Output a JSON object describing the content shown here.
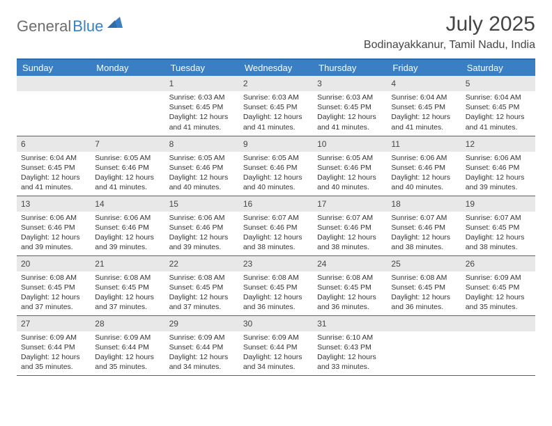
{
  "logo": {
    "text1": "General",
    "text2": "Blue"
  },
  "title": "July 2025",
  "location": "Bodinayakkanur, Tamil Nadu, India",
  "colors": {
    "header_bg": "#3a7fc4",
    "header_text": "#ffffff",
    "border": "#2e6ca8",
    "daynum_bg": "#e8e8e8",
    "body_text": "#333333",
    "title_text": "#454545",
    "logo_gray": "#6d6d6d",
    "logo_blue": "#3a7fc4"
  },
  "weekdays": [
    "Sunday",
    "Monday",
    "Tuesday",
    "Wednesday",
    "Thursday",
    "Friday",
    "Saturday"
  ],
  "weeks": [
    [
      null,
      null,
      {
        "n": "1",
        "sr": "6:03 AM",
        "ss": "6:45 PM",
        "dl": "12 hours and 41 minutes."
      },
      {
        "n": "2",
        "sr": "6:03 AM",
        "ss": "6:45 PM",
        "dl": "12 hours and 41 minutes."
      },
      {
        "n": "3",
        "sr": "6:03 AM",
        "ss": "6:45 PM",
        "dl": "12 hours and 41 minutes."
      },
      {
        "n": "4",
        "sr": "6:04 AM",
        "ss": "6:45 PM",
        "dl": "12 hours and 41 minutes."
      },
      {
        "n": "5",
        "sr": "6:04 AM",
        "ss": "6:45 PM",
        "dl": "12 hours and 41 minutes."
      }
    ],
    [
      {
        "n": "6",
        "sr": "6:04 AM",
        "ss": "6:45 PM",
        "dl": "12 hours and 41 minutes."
      },
      {
        "n": "7",
        "sr": "6:05 AM",
        "ss": "6:46 PM",
        "dl": "12 hours and 41 minutes."
      },
      {
        "n": "8",
        "sr": "6:05 AM",
        "ss": "6:46 PM",
        "dl": "12 hours and 40 minutes."
      },
      {
        "n": "9",
        "sr": "6:05 AM",
        "ss": "6:46 PM",
        "dl": "12 hours and 40 minutes."
      },
      {
        "n": "10",
        "sr": "6:05 AM",
        "ss": "6:46 PM",
        "dl": "12 hours and 40 minutes."
      },
      {
        "n": "11",
        "sr": "6:06 AM",
        "ss": "6:46 PM",
        "dl": "12 hours and 40 minutes."
      },
      {
        "n": "12",
        "sr": "6:06 AM",
        "ss": "6:46 PM",
        "dl": "12 hours and 39 minutes."
      }
    ],
    [
      {
        "n": "13",
        "sr": "6:06 AM",
        "ss": "6:46 PM",
        "dl": "12 hours and 39 minutes."
      },
      {
        "n": "14",
        "sr": "6:06 AM",
        "ss": "6:46 PM",
        "dl": "12 hours and 39 minutes."
      },
      {
        "n": "15",
        "sr": "6:06 AM",
        "ss": "6:46 PM",
        "dl": "12 hours and 39 minutes."
      },
      {
        "n": "16",
        "sr": "6:07 AM",
        "ss": "6:46 PM",
        "dl": "12 hours and 38 minutes."
      },
      {
        "n": "17",
        "sr": "6:07 AM",
        "ss": "6:46 PM",
        "dl": "12 hours and 38 minutes."
      },
      {
        "n": "18",
        "sr": "6:07 AM",
        "ss": "6:46 PM",
        "dl": "12 hours and 38 minutes."
      },
      {
        "n": "19",
        "sr": "6:07 AM",
        "ss": "6:45 PM",
        "dl": "12 hours and 38 minutes."
      }
    ],
    [
      {
        "n": "20",
        "sr": "6:08 AM",
        "ss": "6:45 PM",
        "dl": "12 hours and 37 minutes."
      },
      {
        "n": "21",
        "sr": "6:08 AM",
        "ss": "6:45 PM",
        "dl": "12 hours and 37 minutes."
      },
      {
        "n": "22",
        "sr": "6:08 AM",
        "ss": "6:45 PM",
        "dl": "12 hours and 37 minutes."
      },
      {
        "n": "23",
        "sr": "6:08 AM",
        "ss": "6:45 PM",
        "dl": "12 hours and 36 minutes."
      },
      {
        "n": "24",
        "sr": "6:08 AM",
        "ss": "6:45 PM",
        "dl": "12 hours and 36 minutes."
      },
      {
        "n": "25",
        "sr": "6:08 AM",
        "ss": "6:45 PM",
        "dl": "12 hours and 36 minutes."
      },
      {
        "n": "26",
        "sr": "6:09 AM",
        "ss": "6:45 PM",
        "dl": "12 hours and 35 minutes."
      }
    ],
    [
      {
        "n": "27",
        "sr": "6:09 AM",
        "ss": "6:44 PM",
        "dl": "12 hours and 35 minutes."
      },
      {
        "n": "28",
        "sr": "6:09 AM",
        "ss": "6:44 PM",
        "dl": "12 hours and 35 minutes."
      },
      {
        "n": "29",
        "sr": "6:09 AM",
        "ss": "6:44 PM",
        "dl": "12 hours and 34 minutes."
      },
      {
        "n": "30",
        "sr": "6:09 AM",
        "ss": "6:44 PM",
        "dl": "12 hours and 34 minutes."
      },
      {
        "n": "31",
        "sr": "6:10 AM",
        "ss": "6:43 PM",
        "dl": "12 hours and 33 minutes."
      },
      null,
      null
    ]
  ],
  "labels": {
    "sunrise": "Sunrise:",
    "sunset": "Sunset:",
    "daylight": "Daylight:"
  }
}
